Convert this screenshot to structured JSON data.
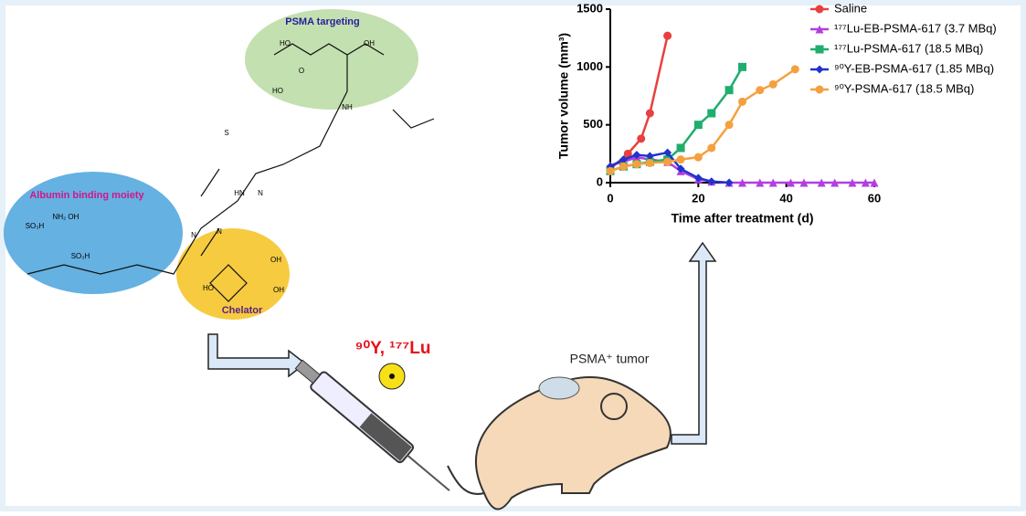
{
  "chart_data": {
    "type": "line",
    "x_label": "Time after treatment (d)",
    "y_label": "Tumor volume (mm³)",
    "xlim": [
      0,
      60
    ],
    "xticks": [
      0,
      20,
      40,
      60
    ],
    "ylim": [
      0,
      1500
    ],
    "yticks": [
      0,
      500,
      1000,
      1500
    ],
    "legend": "upper-right",
    "series": [
      {
        "name": "Saline",
        "color": "#e8403f",
        "marker": "circle",
        "x": [
          0,
          4,
          7,
          9,
          13
        ],
        "values": [
          120,
          250,
          380,
          600,
          1270
        ]
      },
      {
        "name": "¹⁷⁷Lu-EB-PSMA-617 (3.7 MBq)",
        "color": "#b23fe0",
        "marker": "triangle",
        "x": [
          0,
          3,
          6,
          9,
          13,
          16,
          20,
          23,
          27,
          30,
          34,
          37,
          41,
          44,
          48,
          51,
          55,
          58,
          60
        ],
        "values": [
          150,
          180,
          220,
          200,
          180,
          100,
          30,
          10,
          0,
          0,
          0,
          0,
          0,
          0,
          0,
          0,
          0,
          0,
          0
        ]
      },
      {
        "name": "¹⁷⁷Lu-PSMA-617 (18.5 MBq)",
        "color": "#1fae6e",
        "marker": "square",
        "x": [
          0,
          3,
          6,
          9,
          13,
          16,
          20,
          23,
          27,
          30
        ],
        "values": [
          100,
          140,
          160,
          180,
          200,
          300,
          500,
          600,
          800,
          1000
        ]
      },
      {
        "name": "⁹⁰Y-EB-PSMA-617 (1.85 MBq)",
        "color": "#2233cc",
        "marker": "diamond",
        "x": [
          0,
          3,
          6,
          9,
          13,
          16,
          20,
          23,
          27
        ],
        "values": [
          140,
          200,
          240,
          230,
          260,
          120,
          40,
          10,
          0
        ]
      },
      {
        "name": "⁹⁰Y-PSMA-617 (18.5 MBq)",
        "color": "#f5a040",
        "marker": "circle",
        "x": [
          0,
          3,
          6,
          9,
          13,
          16,
          20,
          23,
          27,
          30,
          34,
          37,
          42
        ],
        "values": [
          100,
          140,
          160,
          170,
          180,
          200,
          220,
          300,
          500,
          700,
          800,
          850,
          980
        ]
      }
    ]
  },
  "labels": {
    "targeting": "PSMA targeting",
    "albumin": "Albumin binding moiety",
    "chelator": "Chelator",
    "isotopes": "⁹⁰Y, ¹⁷⁷Lu",
    "tumor": "PSMA⁺ tumor"
  },
  "atoms": [
    "HO",
    "OH",
    "O",
    "HO",
    "NH₂ OH",
    "SO₃H",
    "SO₃H",
    "N",
    "N",
    "OH",
    "HO",
    "OH",
    "N",
    "S",
    "HN",
    "NH"
  ]
}
